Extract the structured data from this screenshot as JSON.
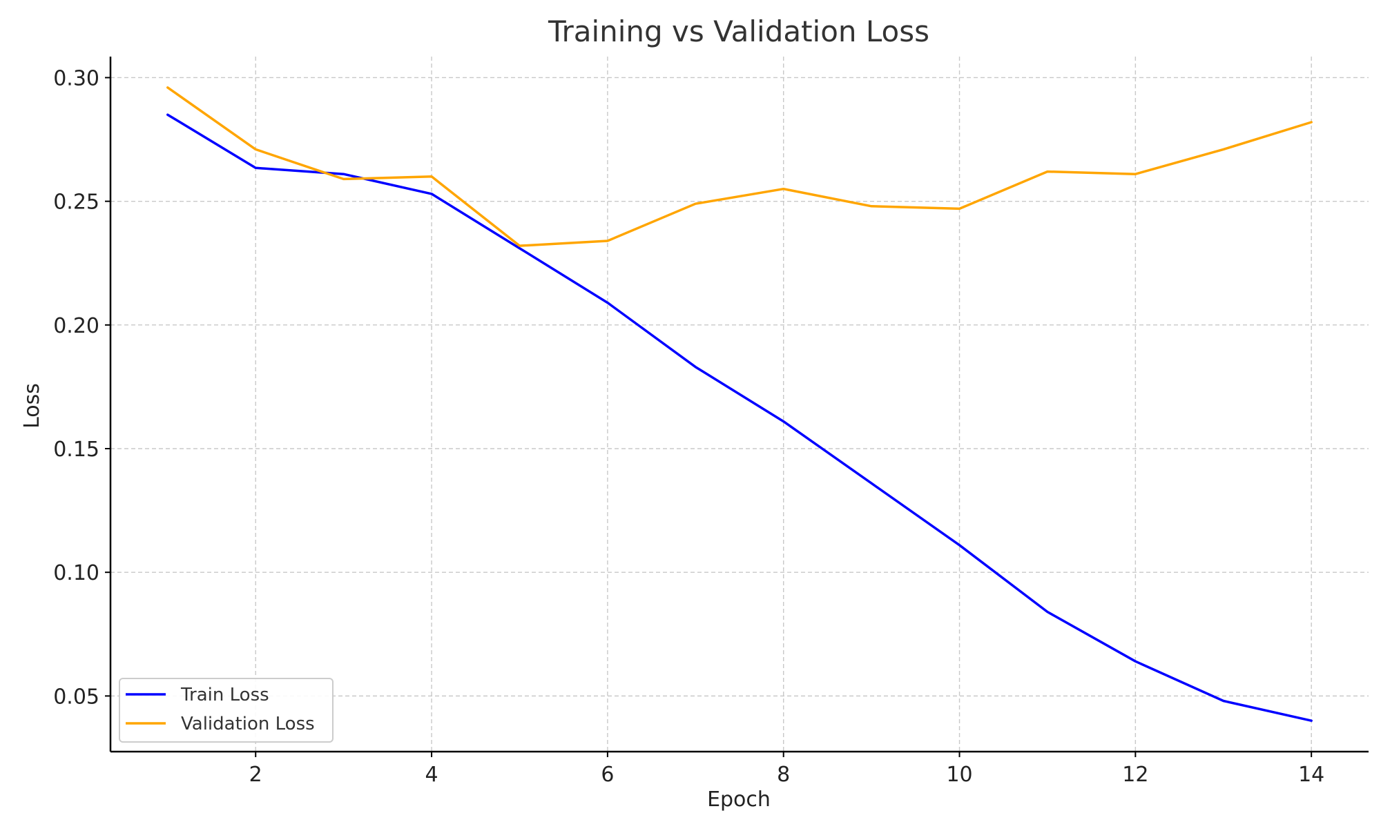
{
  "chart_data": {
    "type": "line",
    "title": "Training vs Validation Loss",
    "xlabel": "Epoch",
    "ylabel": "Loss",
    "xlim": [
      0.35,
      14.65
    ],
    "ylim": [
      0.0275,
      0.3085
    ],
    "xticks": [
      2,
      4,
      6,
      8,
      10,
      12,
      14
    ],
    "xtick_labels": [
      "2",
      "4",
      "6",
      "8",
      "10",
      "12",
      "14"
    ],
    "yticks": [
      0.05,
      0.1,
      0.15,
      0.2,
      0.25,
      0.3
    ],
    "ytick_labels": [
      "0.05",
      "0.10",
      "0.15",
      "0.20",
      "0.25",
      "0.30"
    ],
    "grid": true,
    "legend_position": "lower-left",
    "x": [
      1,
      2,
      3,
      4,
      5,
      6,
      7,
      8,
      9,
      10,
      11,
      12,
      13,
      14
    ],
    "series": [
      {
        "name": "Train Loss",
        "color": "#0000ff",
        "values": [
          0.285,
          0.2635,
          0.261,
          0.253,
          0.231,
          0.209,
          0.183,
          0.161,
          0.136,
          0.111,
          0.084,
          0.064,
          0.048,
          0.04
        ]
      },
      {
        "name": "Validation Loss",
        "color": "#ffa500",
        "values": [
          0.296,
          0.271,
          0.259,
          0.26,
          0.232,
          0.234,
          0.249,
          0.255,
          0.248,
          0.247,
          0.262,
          0.261,
          0.271,
          0.282
        ]
      }
    ]
  }
}
